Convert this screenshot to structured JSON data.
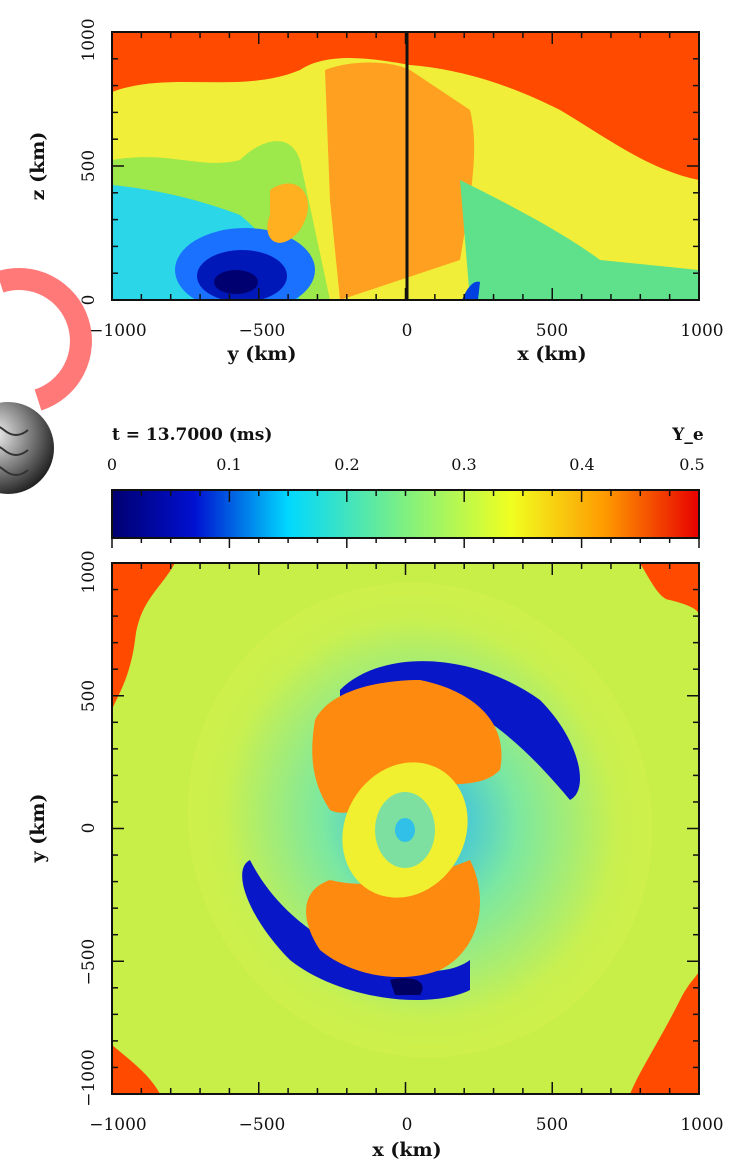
{
  "chart_data": [
    {
      "type": "heatmap",
      "panel": "top",
      "left_half": {
        "xlabel": "y (km)",
        "xlim": [
          -1000,
          0
        ],
        "x_ticks": [
          "−1000",
          "−500",
          "0"
        ]
      },
      "right_half": {
        "xlabel": "x (km)",
        "xlim": [
          0,
          1000
        ],
        "x_ticks": [
          "500",
          "1000"
        ]
      },
      "ylabel": "z (km)",
      "ylim": [
        0,
        1000
      ],
      "y_ticks": [
        "0",
        "500",
        "1000"
      ]
    },
    {
      "type": "colorbar",
      "time_label": "t = 13.7000 (ms)",
      "variable_label": "Y_e",
      "range": [
        0,
        0.5
      ],
      "ticks": [
        "0",
        "0.1",
        "0.2",
        "0.3",
        "0.4",
        "0.5"
      ],
      "colors": [
        "#000080",
        "#0020ff",
        "#00e0ff",
        "#7fff7f",
        "#ffe000",
        "#ff6000",
        "#e00000"
      ]
    },
    {
      "type": "heatmap",
      "panel": "bottom",
      "xlabel": "x (km)",
      "ylabel": "y (km)",
      "xlim": [
        -1000,
        1000
      ],
      "ylim": [
        -1000,
        1000
      ],
      "x_ticks": [
        "−1000",
        "−500",
        "0",
        "500",
        "1000"
      ],
      "y_ticks": [
        "−1000",
        "−500",
        "0",
        "500",
        "1000"
      ]
    }
  ],
  "colors": {
    "low": "#00008b",
    "mid": "#9be84a",
    "high": "#ff4a00",
    "ring": "#ff5a5a"
  },
  "decoration": {
    "icon": "sphere-icon"
  }
}
